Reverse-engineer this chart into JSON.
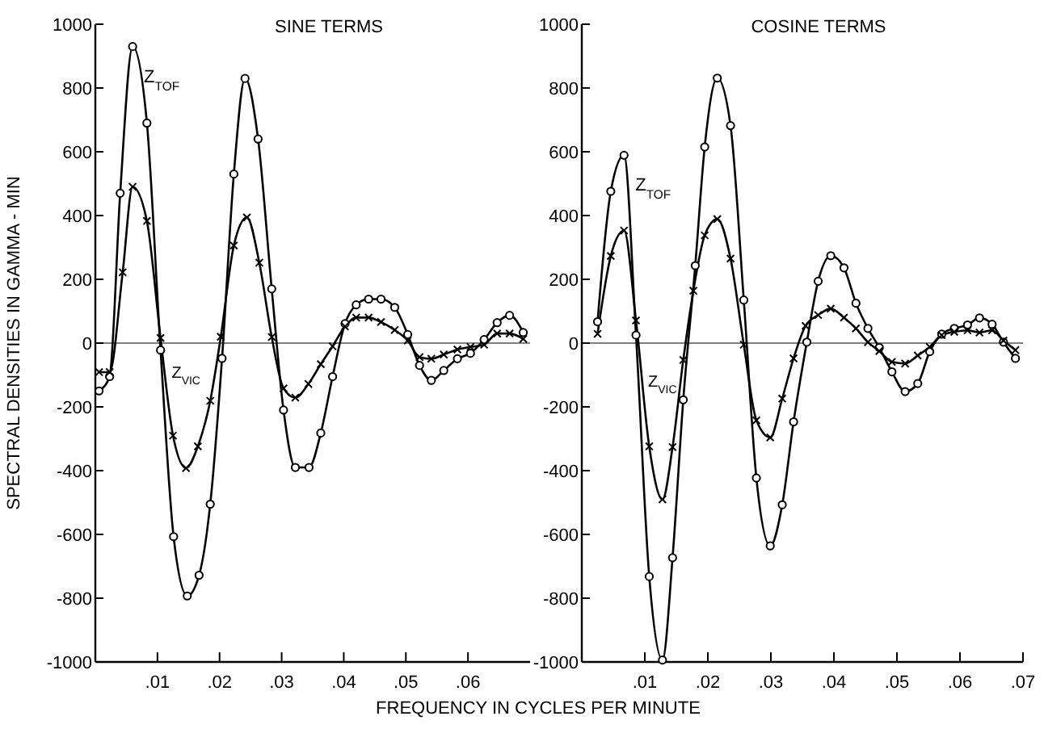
{
  "chart_data": [
    {
      "type": "line",
      "title": "SINE TERMS",
      "ylabel": "SPECTRAL DENSITIES IN GAMMA - MIN",
      "xlabel": "FREQUENCY IN CYCLES PER MINUTE",
      "xlim": [
        0,
        0.07
      ],
      "ylim": [
        -1000,
        1000
      ],
      "xticks": [
        {
          "value": 0.01,
          "label": ".01"
        },
        {
          "value": 0.02,
          "label": ".02"
        },
        {
          "value": 0.03,
          "label": ".03"
        },
        {
          "value": 0.04,
          "label": ".04"
        },
        {
          "value": 0.05,
          "label": ".05"
        },
        {
          "value": 0.06,
          "label": ".06"
        }
      ],
      "yticks": [
        -1000,
        -800,
        -600,
        -400,
        -200,
        0,
        200,
        400,
        600,
        800,
        1000
      ],
      "grid": false,
      "ref_lines": [
        {
          "axis": "y",
          "value": 0
        }
      ],
      "series": [
        {
          "name": "Z$_{TOF}$",
          "color": "#000000",
          "marker": "circle",
          "x": [
            0.0006,
            0.0023,
            0.004,
            0.006,
            0.0083,
            0.0105,
            0.0126,
            0.0148,
            0.0167,
            0.0185,
            0.0204,
            0.0223,
            0.0241,
            0.0262,
            0.0284,
            0.0303,
            0.0322,
            0.0344,
            0.0363,
            0.0382,
            0.0402,
            0.042,
            0.044,
            0.046,
            0.0482,
            0.0503,
            0.0522,
            0.0541,
            0.0561,
            0.0583,
            0.0604,
            0.0626,
            0.0647,
            0.0667,
            0.0689
          ],
          "values": [
            -150,
            -105,
            470,
            930,
            690,
            -22,
            -607,
            -793,
            -728,
            -505,
            -48,
            530,
            830,
            640,
            170,
            -210,
            -390,
            -390,
            -282,
            -105,
            61,
            120,
            138,
            138,
            112,
            27,
            -70,
            -117,
            -86,
            -49,
            -32,
            11,
            64,
            87,
            33
          ]
        },
        {
          "name": "Z$_{VIC}$",
          "color": "#000000",
          "marker": "cross",
          "x": [
            0.0006,
            0.0023,
            0.0044,
            0.006,
            0.0083,
            0.0105,
            0.0125,
            0.0146,
            0.0165,
            0.0185,
            0.0202,
            0.0223,
            0.0244,
            0.0264,
            0.0284,
            0.0303,
            0.0322,
            0.0343,
            0.0363,
            0.0382,
            0.0402,
            0.042,
            0.044,
            0.046,
            0.0482,
            0.0503,
            0.0522,
            0.0541,
            0.0561,
            0.0583,
            0.0604,
            0.0626,
            0.0647,
            0.0667,
            0.0689
          ],
          "values": [
            -91,
            -91,
            222,
            490,
            383,
            16,
            -290,
            -392,
            -324,
            -181,
            20,
            306,
            394,
            252,
            19,
            -142,
            -171,
            -128,
            -66,
            -10,
            52,
            80,
            80,
            66,
            41,
            8,
            -44,
            -49,
            -36,
            -20,
            -12,
            -5,
            30,
            30,
            13
          ]
        }
      ]
    },
    {
      "type": "line",
      "title": "COSINE TERMS",
      "xlim": [
        0,
        0.07
      ],
      "ylim": [
        -1000,
        1000
      ],
      "xticks": [
        {
          "value": 0.01,
          "label": ".01"
        },
        {
          "value": 0.02,
          "label": ".02"
        },
        {
          "value": 0.03,
          "label": ".03"
        },
        {
          "value": 0.04,
          "label": ".04"
        },
        {
          "value": 0.05,
          "label": ".05"
        },
        {
          "value": 0.06,
          "label": ".06"
        },
        {
          "value": 0.07,
          "label": ".07"
        }
      ],
      "yticks": [
        -1000,
        -800,
        -600,
        -400,
        -200,
        0,
        200,
        400,
        600,
        800,
        1000
      ],
      "grid": false,
      "ref_lines": [
        {
          "axis": "y",
          "value": 0
        }
      ],
      "series": [
        {
          "name": "Z$_{TOF}$",
          "color": "#000000",
          "marker": "circle",
          "x": [
            0.0025,
            0.0046,
            0.0067,
            0.0086,
            0.0107,
            0.0128,
            0.0144,
            0.0161,
            0.018,
            0.0195,
            0.0215,
            0.0236,
            0.0257,
            0.0277,
            0.0299,
            0.0318,
            0.0336,
            0.0357,
            0.0375,
            0.0395,
            0.0416,
            0.0435,
            0.0454,
            0.0472,
            0.0492,
            0.0513,
            0.0533,
            0.0552,
            0.0571,
            0.0591,
            0.0612,
            0.0631,
            0.0651,
            0.0669,
            0.0688
          ],
          "values": [
            67,
            476,
            589,
            25,
            -732,
            -994,
            -673,
            -178,
            243,
            615,
            831,
            682,
            135,
            -423,
            -636,
            -507,
            -247,
            3,
            194,
            274,
            236,
            125,
            46,
            -14,
            -90,
            -152,
            -127,
            -27,
            28,
            46,
            57,
            79,
            59,
            3,
            -48
          ]
        },
        {
          "name": "Z$_{VIC}$",
          "color": "#000000",
          "marker": "cross",
          "x": [
            0.0025,
            0.0046,
            0.0067,
            0.0086,
            0.0107,
            0.0128,
            0.0144,
            0.0161,
            0.0177,
            0.0195,
            0.0215,
            0.0236,
            0.0257,
            0.0277,
            0.0299,
            0.0318,
            0.0336,
            0.0355,
            0.0375,
            0.0395,
            0.0416,
            0.0435,
            0.0454,
            0.0472,
            0.0492,
            0.0513,
            0.0533,
            0.0552,
            0.0571,
            0.0591,
            0.0612,
            0.0631,
            0.0651,
            0.0669,
            0.0688
          ],
          "values": [
            29,
            273,
            353,
            71,
            -324,
            -490,
            -326,
            -53,
            164,
            338,
            389,
            265,
            -5,
            -242,
            -296,
            -174,
            -48,
            54,
            88,
            108,
            80,
            46,
            3,
            -25,
            -59,
            -64,
            -39,
            -12,
            25,
            35,
            40,
            33,
            40,
            8,
            -22
          ]
        }
      ]
    }
  ]
}
